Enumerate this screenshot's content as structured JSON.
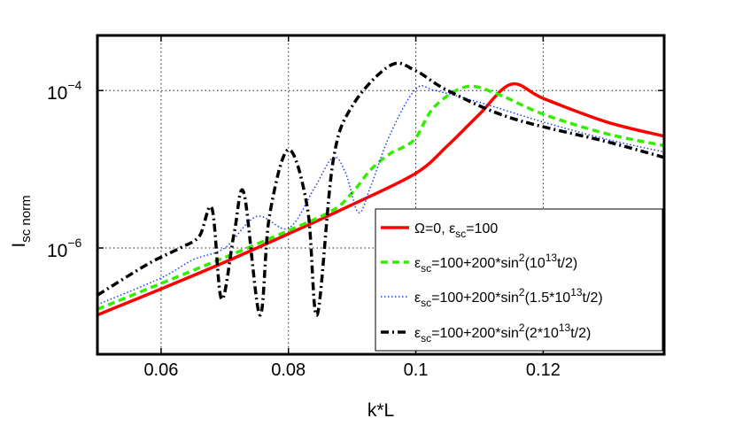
{
  "chart_data": {
    "type": "line",
    "title": "",
    "xlabel": "k*L",
    "ylabel": {
      "main": "I",
      "sub": "sc norm"
    },
    "x_scale": "linear",
    "y_scale": "log",
    "xlim": [
      0.05,
      0.139
    ],
    "ylim_log10": [
      -7.35,
      -3.3
    ],
    "grid": true,
    "x_ticks": [
      {
        "value": 0.06,
        "label": "0.06"
      },
      {
        "value": 0.08,
        "label": "0.08"
      },
      {
        "value": 0.1,
        "label": "0.1"
      },
      {
        "value": 0.12,
        "label": "0.12"
      }
    ],
    "y_ticks": [
      {
        "log10": -6,
        "base": "10",
        "exp": "−6"
      },
      {
        "log10": -4,
        "base": "10",
        "exp": "−4"
      }
    ],
    "legend_position": "bottom-right",
    "series": [
      {
        "name": "Ω=0, ε_sc=100",
        "legend": [
          {
            "t": "Ω=0, ε",
            "s": "n"
          },
          {
            "t": "sc",
            "s": "sub"
          },
          {
            "t": "=100",
            "s": "n"
          }
        ],
        "color": "#ff0000",
        "style": "solid",
        "x": [
          0.05,
          0.06,
          0.07,
          0.08,
          0.09,
          0.1,
          0.105,
          0.11,
          0.115,
          0.12,
          0.13,
          0.139
        ],
        "log10": [
          -6.85,
          -6.52,
          -6.18,
          -5.82,
          -5.45,
          -5.05,
          -4.7,
          -4.3,
          -3.92,
          -4.1,
          -4.4,
          -4.58
        ]
      },
      {
        "name": "ε_sc=100+200*sin²(10¹³t/2)",
        "legend": [
          {
            "t": "ε",
            "s": "n"
          },
          {
            "t": "sc",
            "s": "sub"
          },
          {
            "t": "=100+200*sin",
            "s": "n"
          },
          {
            "t": "2",
            "s": "sup"
          },
          {
            "t": "(10",
            "s": "n"
          },
          {
            "t": "13",
            "s": "sup"
          },
          {
            "t": "t/2)",
            "s": "n"
          }
        ],
        "color": "#33ee00",
        "style": "dashed",
        "x": [
          0.05,
          0.06,
          0.07,
          0.08,
          0.087,
          0.09,
          0.093,
          0.096,
          0.098,
          0.1,
          0.103,
          0.108,
          0.113,
          0.12,
          0.13,
          0.139
        ],
        "log10": [
          -6.78,
          -6.45,
          -6.12,
          -5.78,
          -5.52,
          -5.3,
          -5.0,
          -4.8,
          -4.72,
          -4.6,
          -4.2,
          -3.95,
          -4.05,
          -4.3,
          -4.55,
          -4.7
        ]
      },
      {
        "name": "ε_sc=100+200*sin²(1.5*10¹³t/2)",
        "legend": [
          {
            "t": "ε",
            "s": "n"
          },
          {
            "t": "sc",
            "s": "sub"
          },
          {
            "t": "=100+200*sin",
            "s": "n"
          },
          {
            "t": "2",
            "s": "sup"
          },
          {
            "t": "(1.5*10",
            "s": "n"
          },
          {
            "t": "13",
            "s": "sup"
          },
          {
            "t": "t/2)",
            "s": "n"
          }
        ],
        "color": "#1a3dff",
        "style": "dotted",
        "x": [
          0.05,
          0.06,
          0.065,
          0.07,
          0.075,
          0.08,
          0.084,
          0.087,
          0.089,
          0.091,
          0.093,
          0.096,
          0.1,
          0.103,
          0.11,
          0.12,
          0.13,
          0.139
        ],
        "log10": [
          -6.72,
          -6.38,
          -6.15,
          -6.0,
          -5.6,
          -5.75,
          -5.25,
          -4.85,
          -5.05,
          -5.55,
          -5.2,
          -4.55,
          -3.98,
          -4.0,
          -4.15,
          -4.4,
          -4.62,
          -4.78
        ]
      },
      {
        "name": "ε_sc=100+200*sin²(2*10¹³t/2)",
        "legend": [
          {
            "t": "ε",
            "s": "n"
          },
          {
            "t": "sc",
            "s": "sub"
          },
          {
            "t": "=100+200*sin",
            "s": "n"
          },
          {
            "t": "2",
            "s": "sup"
          },
          {
            "t": "(2*10",
            "s": "n"
          },
          {
            "t": "13",
            "s": "sup"
          },
          {
            "t": "t/2)",
            "s": "n"
          }
        ],
        "color": "#000000",
        "style": "dashdot",
        "x": [
          0.05,
          0.058,
          0.063,
          0.066,
          0.068,
          0.0695,
          0.0715,
          0.073,
          0.0755,
          0.077,
          0.08,
          0.083,
          0.0845,
          0.087,
          0.09,
          0.096,
          0.1,
          0.105,
          0.115,
          0.13,
          0.139
        ],
        "log10": [
          -6.6,
          -6.2,
          -6.0,
          -5.85,
          -5.5,
          -6.65,
          -5.8,
          -5.3,
          -6.85,
          -5.6,
          -4.75,
          -5.5,
          -6.85,
          -4.9,
          -4.2,
          -3.68,
          -3.75,
          -4.0,
          -4.35,
          -4.65,
          -4.85
        ]
      }
    ]
  }
}
